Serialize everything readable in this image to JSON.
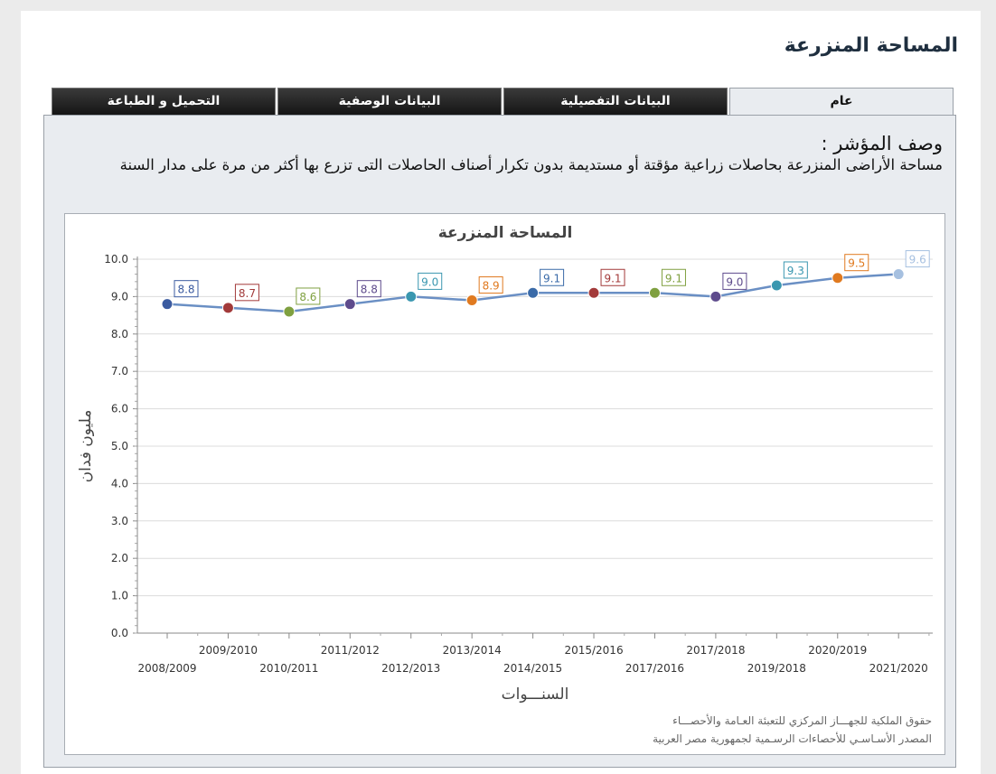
{
  "page": {
    "title": "المساحة المنزرعة"
  },
  "tabs": [
    {
      "label": "عام",
      "active": true
    },
    {
      "label": "البيانات التفصيلية",
      "active": false
    },
    {
      "label": "البيانات الوصفية",
      "active": false
    },
    {
      "label": "التحميل و الطباعة",
      "active": false
    }
  ],
  "indicator": {
    "label": "وصف المؤشر :",
    "text": "مساحة الأراضى المنزرعة بحاصلات زراعية مؤقتة أو مستديمة بدون تكرار أصناف الحاصلات التى تزرع بها أكثر من مرة على مدار السنة"
  },
  "credits": {
    "line1": "حقوق الملكية للجهـــاز المركزي للتعبئة العـامة والأحصـــاء",
    "line2": "المصدر الأسـاسـي للأحصاءات الرسـمية لجمهورية مصر العربية"
  },
  "chart_data": {
    "type": "line",
    "title": "المساحة المنزرعة",
    "xlabel": "السنـــوات",
    "ylabel": "مليون فدان",
    "ylim": [
      0,
      10
    ],
    "yticks": [
      "0.0",
      "1.0",
      "2.0",
      "3.0",
      "4.0",
      "5.0",
      "6.0",
      "7.0",
      "8.0",
      "9.0",
      "10.0"
    ],
    "grid": true,
    "categories": [
      "2008/2009",
      "2009/2010",
      "2010/2011",
      "2011/2012",
      "2012/2013",
      "2013/2014",
      "2014/2015",
      "2015/2016",
      "2017/2016",
      "2017/2018",
      "2019/2018",
      "2020/2019",
      "2021/2020"
    ],
    "values": [
      8.8,
      8.7,
      8.6,
      8.8,
      9.0,
      8.9,
      9.1,
      9.1,
      9.1,
      9.0,
      9.3,
      9.5,
      9.6
    ],
    "value_labels": [
      "8.8",
      "8.7",
      "8.6",
      "8.8",
      "9.0",
      "8.9",
      "9.1",
      "9.1",
      "9.1",
      "9.0",
      "9.3",
      "9.5",
      "9.6"
    ],
    "line_color": "#6a8fc4",
    "point_colors": [
      "#3b5ba0",
      "#a23a3a",
      "#7fa040",
      "#5e4b8c",
      "#3a97b0",
      "#e07a20",
      "#3a6aa8",
      "#a33a3a",
      "#7fa040",
      "#5e4b8c",
      "#3a97b0",
      "#e07a20",
      "#a6c0e0"
    ]
  }
}
